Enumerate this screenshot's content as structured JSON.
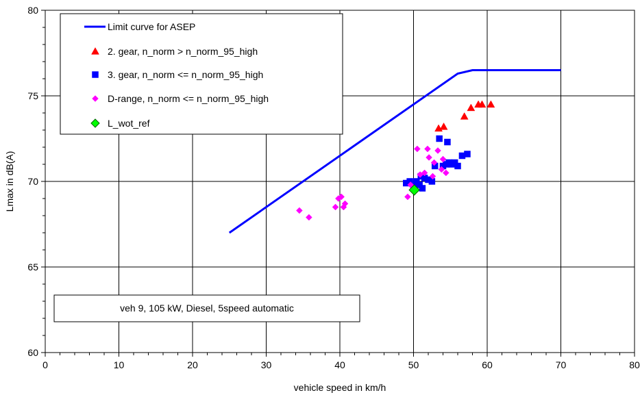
{
  "chart_data": {
    "type": "scatter",
    "title": "",
    "xlabel": "vehicle speed in km/h",
    "ylabel": "Lmax in dB(A)",
    "xlim": [
      0,
      80
    ],
    "ylim": [
      60,
      80
    ],
    "x_ticks": [
      0,
      10,
      20,
      30,
      40,
      50,
      60,
      70,
      80
    ],
    "y_ticks": [
      60,
      65,
      70,
      75,
      80
    ],
    "grid": true,
    "legend_position": "top-left",
    "annotation": "veh 9, 105 kW, Diesel, 5speed automatic",
    "series": [
      {
        "name": "Limit curve for ASEP",
        "kind": "line",
        "color": "#0000ff",
        "points": [
          [
            25,
            67.0
          ],
          [
            56,
            76.3
          ],
          [
            58,
            76.5
          ],
          [
            70,
            76.5
          ]
        ]
      },
      {
        "name": "2. gear, n_norm > n_norm_95_high",
        "kind": "scatter",
        "marker": "triangle",
        "color": "#ff0000",
        "points": [
          [
            53.4,
            73.1
          ],
          [
            54.1,
            73.2
          ],
          [
            56.9,
            73.8
          ],
          [
            57.8,
            74.3
          ],
          [
            58.8,
            74.5
          ],
          [
            59.3,
            74.5
          ],
          [
            60.5,
            74.5
          ]
        ]
      },
      {
        "name": "3. gear, n_norm <= n_norm_95_high",
        "kind": "scatter",
        "marker": "square",
        "color": "#0000ff",
        "points": [
          [
            49.0,
            69.9
          ],
          [
            49.5,
            70.0
          ],
          [
            50.0,
            69.7
          ],
          [
            50.4,
            70.0
          ],
          [
            50.8,
            69.8
          ],
          [
            51.2,
            69.6
          ],
          [
            51.5,
            70.2
          ],
          [
            52.0,
            70.1
          ],
          [
            52.5,
            70.0
          ],
          [
            52.9,
            70.9
          ],
          [
            53.5,
            72.5
          ],
          [
            54.0,
            70.9
          ],
          [
            54.4,
            71.0
          ],
          [
            54.8,
            71.1
          ],
          [
            55.2,
            71.0
          ],
          [
            55.6,
            71.1
          ],
          [
            56.0,
            70.9
          ],
          [
            56.6,
            71.5
          ],
          [
            57.3,
            71.6
          ],
          [
            54.6,
            72.3
          ],
          [
            51.0,
            70.3
          ]
        ]
      },
      {
        "name": "D-range, n_norm <= n_norm_95_high",
        "kind": "scatter",
        "marker": "diamond",
        "color": "#ff00ff",
        "points": [
          [
            34.5,
            68.3
          ],
          [
            35.8,
            67.9
          ],
          [
            39.4,
            68.5
          ],
          [
            39.8,
            69.0
          ],
          [
            40.2,
            69.1
          ],
          [
            40.5,
            68.5
          ],
          [
            40.7,
            68.7
          ],
          [
            49.2,
            69.1
          ],
          [
            49.6,
            69.8
          ],
          [
            50.5,
            71.9
          ],
          [
            50.9,
            70.4
          ],
          [
            51.5,
            70.5
          ],
          [
            51.9,
            71.9
          ],
          [
            52.1,
            71.4
          ],
          [
            52.6,
            70.3
          ],
          [
            52.8,
            71.1
          ],
          [
            53.3,
            71.8
          ],
          [
            53.8,
            70.7
          ],
          [
            54.0,
            71.3
          ],
          [
            54.4,
            70.5
          ]
        ]
      },
      {
        "name": "L_wot_ref",
        "kind": "scatter",
        "marker": "diamond-large",
        "color": "#00ff00",
        "stroke": "#006600",
        "points": [
          [
            50.1,
            69.5
          ]
        ]
      }
    ]
  }
}
